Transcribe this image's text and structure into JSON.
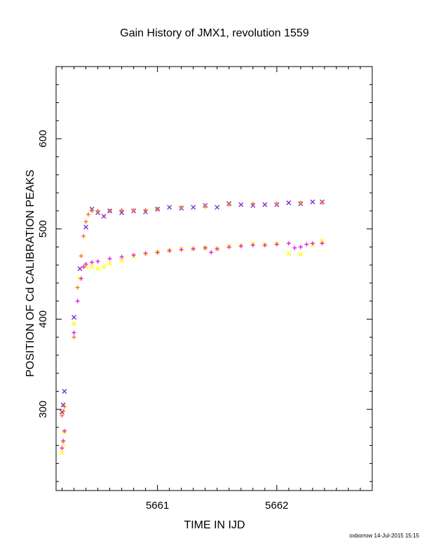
{
  "chart_data": {
    "type": "scatter",
    "title": "Gain History of JMX1, revolution 1559",
    "xlabel": "TIME IN IJD",
    "ylabel": "POSITION OF Cd CALIBRATION PEAKS",
    "xlim": [
      5660.15,
      5662.8
    ],
    "ylim": [
      210,
      680
    ],
    "xticks": [
      5661,
      5662
    ],
    "yticks": [
      300,
      400,
      500,
      600
    ],
    "grid": false,
    "legend": "none",
    "series": [
      {
        "marker": "x",
        "color": "#7B2FD0",
        "x": [
          5660.2,
          5660.21,
          5660.22,
          5660.3,
          5660.35,
          5660.4,
          5660.45,
          5660.5,
          5660.55,
          5660.6,
          5660.7,
          5660.8,
          5660.9,
          5661.0,
          5661.1,
          5661.2,
          5661.3,
          5661.4,
          5661.5,
          5661.6,
          5661.7,
          5661.8,
          5661.9,
          5662.0,
          5662.1,
          5662.2,
          5662.3,
          5662.38
        ],
        "y": [
          297,
          305,
          320,
          402,
          456,
          502,
          522,
          518,
          514,
          520,
          518,
          520,
          519,
          522,
          524,
          523,
          524,
          526,
          524,
          528,
          527,
          526,
          527,
          527,
          529,
          528,
          530,
          530
        ]
      },
      {
        "marker": "x",
        "color": "#FFFF00",
        "x": [
          5660.2,
          5660.21,
          5660.22,
          5660.3,
          5660.35,
          5660.4,
          5660.45,
          5660.5,
          5660.55,
          5660.6,
          5660.7,
          5660.8,
          5660.9,
          5661.0,
          5661.1,
          5661.2,
          5661.3,
          5661.4,
          5661.5,
          5661.6,
          5661.7,
          5661.8,
          5661.9,
          5662.0,
          5662.1,
          5662.2,
          5662.3,
          5662.38
        ],
        "y": [
          252,
          262,
          275,
          395,
          445,
          458,
          458,
          456,
          458,
          462,
          465,
          470,
          472,
          474,
          476,
          478,
          478,
          479,
          478,
          481,
          482,
          484,
          483,
          484,
          473,
          472,
          482,
          487
        ]
      },
      {
        "marker": "+",
        "color": "#F47A20",
        "x": [
          5660.2,
          5660.21,
          5660.22,
          5660.3,
          5660.33,
          5660.36,
          5660.38,
          5660.4,
          5660.42,
          5660.45,
          5660.5,
          5660.6,
          5660.7,
          5660.8,
          5660.9,
          5661.0,
          5661.2,
          5661.4,
          5661.6,
          5661.8,
          5662.0,
          5662.2,
          5662.38
        ],
        "y": [
          293,
          298,
          303,
          380,
          435,
          470,
          492,
          508,
          516,
          520,
          520,
          520,
          521,
          521,
          521,
          522,
          524,
          525,
          527,
          528,
          528,
          529,
          529
        ]
      },
      {
        "marker": "+",
        "color": "#E520E5",
        "x": [
          5660.2,
          5660.21,
          5660.22,
          5660.3,
          5660.33,
          5660.36,
          5660.38,
          5660.4,
          5660.45,
          5660.5,
          5660.6,
          5660.7,
          5660.8,
          5660.9,
          5661.0,
          5661.1,
          5661.2,
          5661.3,
          5661.4,
          5661.45,
          5661.5,
          5661.6,
          5661.7,
          5661.8,
          5661.9,
          5662.0,
          5662.1,
          5662.15,
          5662.2,
          5662.25,
          5662.3,
          5662.38
        ],
        "y": [
          257,
          265,
          276,
          385,
          420,
          445,
          458,
          461,
          463,
          464,
          467,
          469,
          471,
          473,
          474,
          476,
          477,
          478,
          479,
          474,
          478,
          480,
          481,
          482,
          482,
          483,
          484,
          479,
          480,
          483,
          484,
          484
        ]
      }
    ]
  },
  "footer": "oxborrow 14-Jul-2015 15:15"
}
